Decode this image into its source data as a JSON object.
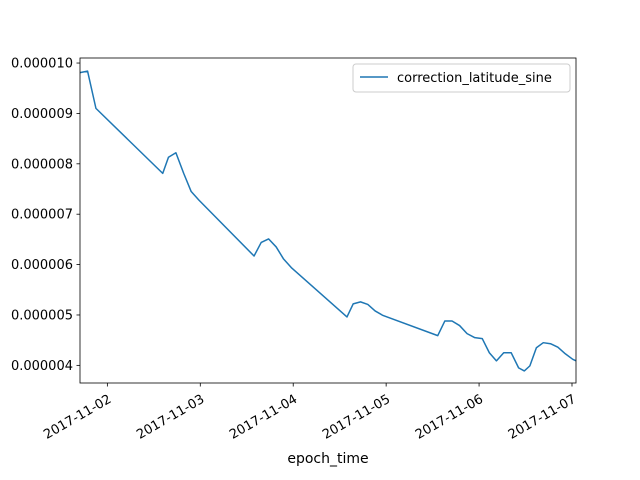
{
  "chart_data": {
    "type": "line",
    "xlabel": "epoch_time",
    "ylabel": "",
    "x_tick_labels": [
      "2017-11-02",
      "2017-11-03",
      "2017-11-04",
      "2017-11-05",
      "2017-11-06",
      "2017-11-07"
    ],
    "y_tick_labels": [
      "0.000004",
      "0.000005",
      "0.000006",
      "0.000007",
      "0.000008",
      "0.000009",
      "0.000010"
    ],
    "y_ticks": [
      4e-06,
      5e-06,
      6e-06,
      7e-06,
      8e-06,
      9e-06,
      1e-05
    ],
    "xlim": [
      "2017-11-01 16:56",
      "2017-11-07 01:02"
    ],
    "ylim": [
      3.65e-06,
      1.01e-05
    ],
    "grid": false,
    "legend_position": "top-right",
    "series": [
      {
        "name": "correction_latitude_sine",
        "color": "#1f77b4",
        "x": [
          "2017-11-01 16:56",
          "2017-11-01 18:53",
          "2017-11-01 21:03",
          "2017-11-02 14:18",
          "2017-11-02 15:47",
          "2017-11-02 17:42",
          "2017-11-02 19:43",
          "2017-11-02 21:39",
          "2017-11-02 23:39",
          "2017-11-03 13:53",
          "2017-11-03 15:44",
          "2017-11-03 17:38",
          "2017-11-03 19:36",
          "2017-11-03 21:31",
          "2017-11-03 23:38",
          "2017-11-04 13:53",
          "2017-11-04 15:29",
          "2017-11-04 17:23",
          "2017-11-04 19:16",
          "2017-11-04 21:09",
          "2017-11-04 23:11",
          "2017-11-05 13:19",
          "2017-11-05 15:09",
          "2017-11-05 17:01",
          "2017-11-05 18:58",
          "2017-11-05 20:54",
          "2017-11-05 22:54",
          "2017-11-06 00:50",
          "2017-11-06 02:39",
          "2017-11-06 04:29",
          "2017-11-06 06:22",
          "2017-11-06 08:18",
          "2017-11-06 10:13",
          "2017-11-06 11:41",
          "2017-11-06 13:07",
          "2017-11-06 14:48",
          "2017-11-06 16:35",
          "2017-11-06 18:27",
          "2017-11-06 20:21",
          "2017-11-06 22:16",
          "2017-11-07 00:12",
          "2017-11-07 01:02"
        ],
        "y": [
          9.81e-06,
          9.84e-06,
          9.1e-06,
          7.81e-06,
          8.13e-06,
          8.22e-06,
          7.81e-06,
          7.45e-06,
          7.28e-06,
          6.17e-06,
          6.44e-06,
          6.51e-06,
          6.35e-06,
          6.11e-06,
          5.93e-06,
          4.96e-06,
          5.22e-06,
          5.26e-06,
          5.21e-06,
          5.08e-06,
          4.99e-06,
          4.59e-06,
          4.88e-06,
          4.88e-06,
          4.79e-06,
          4.63e-06,
          4.55e-06,
          4.53e-06,
          4.25e-06,
          4.09e-06,
          4.25e-06,
          4.25e-06,
          3.95e-06,
          3.89e-06,
          3.99e-06,
          4.35e-06,
          4.45e-06,
          4.43e-06,
          4.36e-06,
          4.23e-06,
          4.12e-06,
          4.09e-06
        ]
      }
    ]
  }
}
